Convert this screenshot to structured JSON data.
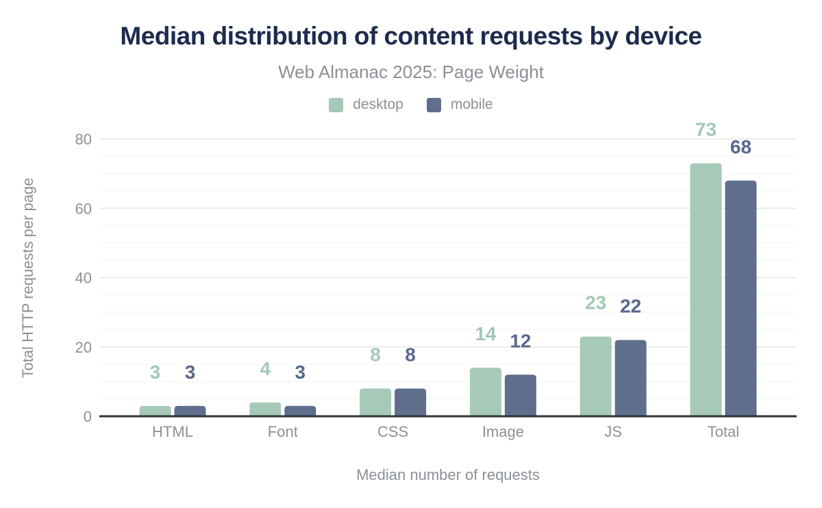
{
  "theme": {
    "background": "#ffffff",
    "title_color": "#1d2b4d",
    "muted_text": "#8b9096",
    "axis_line": "#2f3237",
    "grid_major": "#e5e7e9",
    "grid_minor": "#f4f5f6"
  },
  "chart_data": {
    "type": "bar",
    "title": "Median distribution of content requests by device",
    "subtitle": "Web Almanac 2025: Page Weight",
    "categories": [
      "HTML",
      "Font",
      "CSS",
      "Image",
      "JS",
      "Total"
    ],
    "series": [
      {
        "name": "desktop",
        "color": "#a6c9b8",
        "label_color": "#a4c8b6",
        "values": [
          3,
          4,
          8,
          14,
          23,
          73
        ]
      },
      {
        "name": "mobile",
        "color": "#5f6e8c",
        "label_color": "#58698e",
        "values": [
          3,
          3,
          8,
          12,
          22,
          68
        ]
      }
    ],
    "xlabel": "Median number of requests",
    "ylabel": "Total HTTP requests per page",
    "ylim": [
      0,
      80
    ],
    "yticks": [
      0,
      20,
      40,
      60,
      80
    ],
    "ytick_interval": 20,
    "yminor_interval": 5,
    "grid": true,
    "legend_position": "top"
  }
}
